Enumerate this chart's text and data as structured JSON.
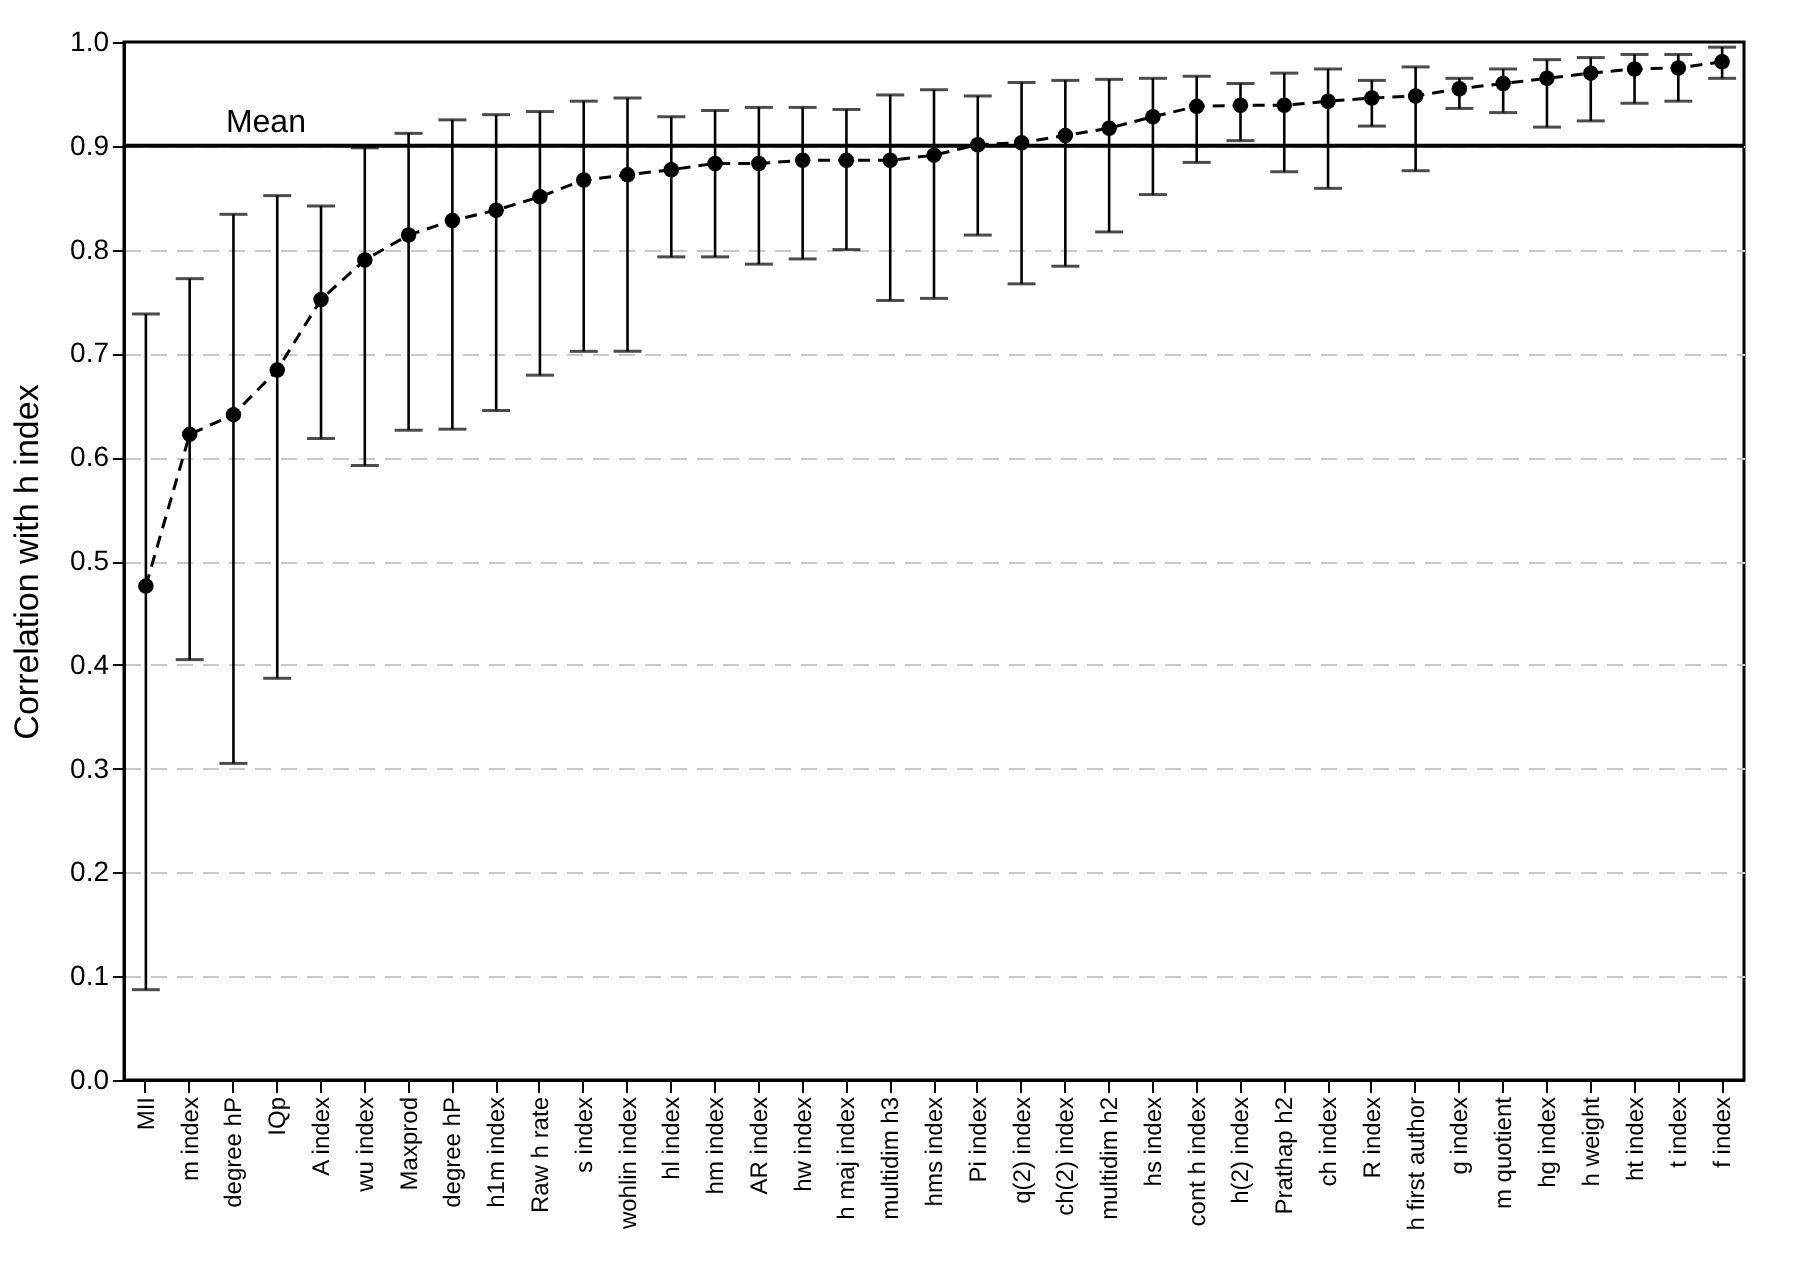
{
  "chart_data": {
    "type": "line",
    "ylabel": "Correlation with h index",
    "categories": [
      "MII",
      "m index",
      "degree hP",
      "IQp",
      "A index",
      "wu index",
      "Maxprod",
      "degree hP",
      "h1m index",
      "Raw h rate",
      "s index",
      "wohlin index",
      "hl index",
      "hm index",
      "AR index",
      "hw index",
      "h maj index",
      "multidim h3",
      "hms index",
      "Pi index",
      "q(2) index",
      "ch(2) index",
      "multidim h2",
      "hs index",
      "cont h index",
      "h(2) index",
      "Prathap h2",
      "ch index",
      "R index",
      "h first author",
      "g index",
      "m quotient",
      "hg index",
      "h weight",
      "ht index",
      "t index",
      "f index"
    ],
    "series": [
      {
        "color": "#000000",
        "values": [
          0.476,
          0.622,
          0.641,
          0.684,
          0.752,
          0.79,
          0.814,
          0.828,
          0.838,
          0.851,
          0.867,
          0.872,
          0.877,
          0.883,
          0.883,
          0.886,
          0.886,
          0.886,
          0.891,
          0.901,
          0.903,
          0.91,
          0.917,
          0.928,
          0.938,
          0.939,
          0.939,
          0.943,
          0.946,
          0.948,
          0.955,
          0.96,
          0.965,
          0.97,
          0.974,
          0.975,
          0.981
        ],
        "errors": [
          [
            0.087,
            0.738
          ],
          [
            0.405,
            0.772
          ],
          [
            0.305,
            0.834
          ],
          [
            0.387,
            0.852
          ],
          [
            0.618,
            0.842
          ],
          [
            0.592,
            0.898
          ],
          [
            0.626,
            0.912
          ],
          [
            0.627,
            0.925
          ],
          [
            0.645,
            0.93
          ],
          [
            0.679,
            0.933
          ],
          [
            0.702,
            0.943
          ],
          [
            0.702,
            0.946
          ],
          [
            0.793,
            0.928
          ],
          [
            0.793,
            0.934
          ],
          [
            0.786,
            0.937
          ],
          [
            0.791,
            0.937
          ],
          [
            0.8,
            0.935
          ],
          [
            0.751,
            0.949
          ],
          [
            0.753,
            0.954
          ],
          [
            0.814,
            0.948
          ],
          [
            0.767,
            0.961
          ],
          [
            0.784,
            0.963
          ],
          [
            0.817,
            0.964
          ],
          [
            0.853,
            0.965
          ],
          [
            0.884,
            0.967
          ],
          [
            0.905,
            0.96
          ],
          [
            0.875,
            0.97
          ],
          [
            0.859,
            0.974
          ],
          [
            0.919,
            0.963
          ],
          [
            0.876,
            0.976
          ],
          [
            0.936,
            0.965
          ],
          [
            0.932,
            0.974
          ],
          [
            0.918,
            0.983
          ],
          [
            0.924,
            0.985
          ],
          [
            0.941,
            0.988
          ],
          [
            0.943,
            0.988
          ],
          [
            0.965,
            0.995
          ]
        ]
      }
    ],
    "ylim": [
      0,
      1
    ],
    "yticks": [
      {
        "value": 0,
        "label": "0.0"
      },
      {
        "value": 0.1,
        "label": "0.1"
      },
      {
        "value": 0.2,
        "label": "0.2"
      },
      {
        "value": 0.3,
        "label": "0.3"
      },
      {
        "value": 0.4,
        "label": "0.4"
      },
      {
        "value": 0.5,
        "label": "0.5"
      },
      {
        "value": 0.6,
        "label": "0.6"
      },
      {
        "value": 0.7,
        "label": "0.7"
      },
      {
        "value": 0.8,
        "label": "0.8"
      },
      {
        "value": 0.9,
        "label": "0.9"
      },
      {
        "value": 1,
        "label": "1.0"
      }
    ],
    "grid": "y",
    "marker": "circle",
    "line_style": "dashed",
    "ref_lines": [
      {
        "axis": "y",
        "value": 0.9,
        "label": "Mean",
        "color": "#000000",
        "line_style": "solid"
      }
    ]
  }
}
